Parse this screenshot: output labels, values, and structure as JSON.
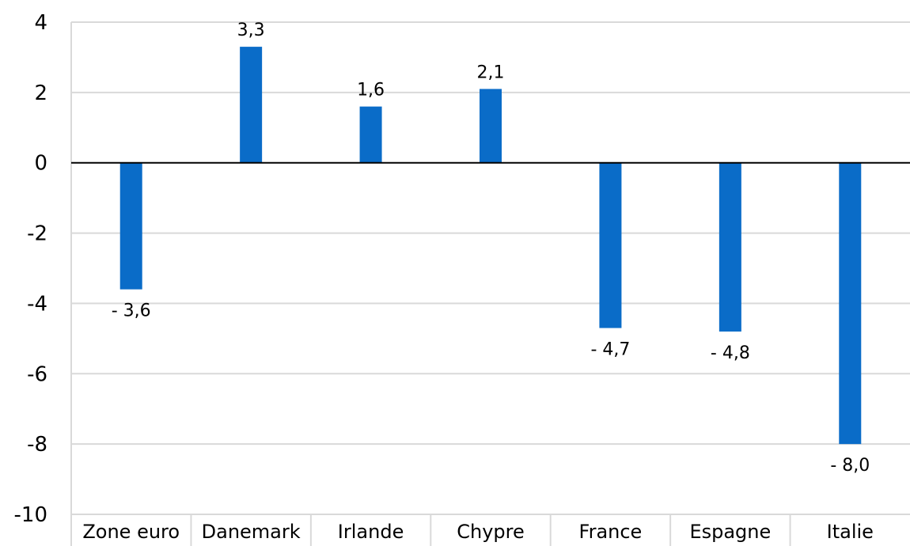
{
  "chart_data": {
    "type": "bar",
    "categories": [
      "Zone euro",
      "Danemark",
      "Irlande",
      "Chypre",
      "France",
      "Espagne",
      "Italie"
    ],
    "values": [
      -3.6,
      3.3,
      1.6,
      2.1,
      -4.7,
      -4.8,
      -8.0
    ],
    "data_labels": [
      "- 3,6",
      "3,3",
      "1,6",
      "2,1",
      "- 4,7",
      "- 4,8",
      "- 8,0"
    ],
    "yticks": [
      4,
      2,
      0,
      -2,
      -4,
      -6,
      -8,
      -10
    ],
    "ylim": [
      -10,
      4
    ],
    "grid": true,
    "legend": "none",
    "colors": {
      "bar": "#0a6cc8",
      "grid": "#d9d9d9",
      "axis": "#000000"
    }
  }
}
